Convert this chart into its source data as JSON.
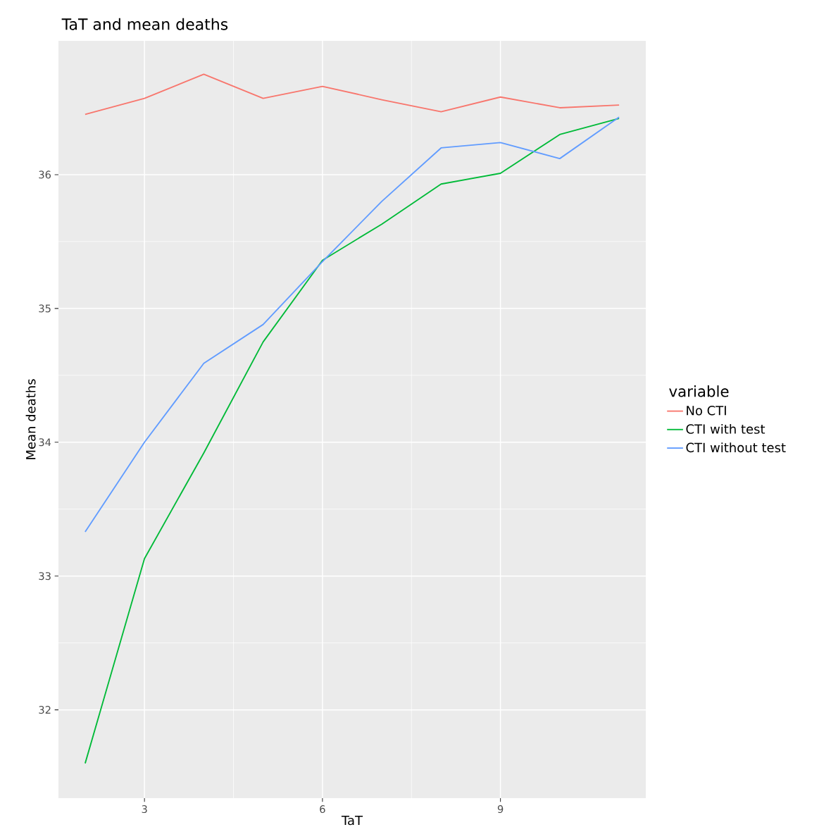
{
  "chart_data": {
    "type": "line",
    "title": "TaT and mean deaths",
    "xlabel": "TaT",
    "ylabel": "Mean deaths",
    "legend_title": "variable",
    "x": [
      2,
      3,
      4,
      5,
      6,
      7,
      8,
      9,
      10,
      11
    ],
    "series": [
      {
        "name": "No CTI",
        "color": "#f8766d",
        "values": [
          36.45,
          36.57,
          36.75,
          36.57,
          36.66,
          36.56,
          36.47,
          36.58,
          36.5,
          36.52
        ]
      },
      {
        "name": "CTI with test",
        "color": "#00ba38",
        "values": [
          31.6,
          33.13,
          33.92,
          34.75,
          35.36,
          35.63,
          35.93,
          36.01,
          36.3,
          36.42
        ]
      },
      {
        "name": "CTI without test",
        "color": "#619cff",
        "values": [
          33.33,
          34.0,
          34.59,
          34.88,
          35.35,
          35.8,
          36.2,
          36.24,
          36.12,
          36.43
        ]
      }
    ],
    "xlim": [
      1.55,
      11.45
    ],
    "ylim": [
      31.34,
      37.0
    ],
    "xticks": [
      3,
      6,
      9
    ],
    "yticks": [
      32,
      33,
      34,
      35,
      36
    ],
    "grid": true,
    "legend": "right",
    "marker": "none",
    "line_style": "solid"
  }
}
